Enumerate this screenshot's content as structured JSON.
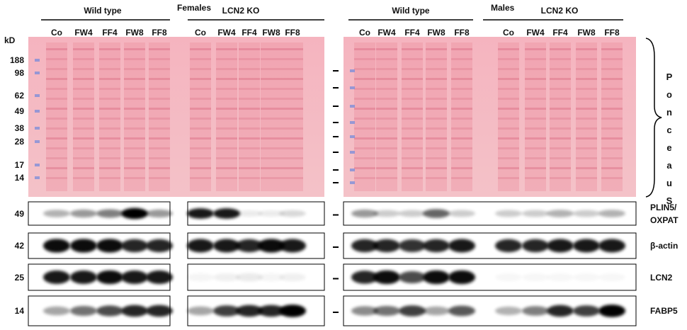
{
  "kd_label": "kD",
  "markers": [
    "188",
    "98",
    "62",
    "49",
    "38",
    "28",
    "17",
    "14"
  ],
  "ponceau": "PonceauS",
  "panels": [
    {
      "sex": "Females",
      "groups": [
        {
          "name": "Wild type",
          "lanes": [
            "Co",
            "FW4",
            "FF4",
            "FW8",
            "FF8"
          ]
        },
        {
          "name": "LCN2 KO",
          "lanes": [
            "Co",
            "FW4",
            "FF4",
            "FW8",
            "FF8"
          ]
        }
      ]
    },
    {
      "sex": "Males",
      "groups": [
        {
          "name": "Wild type",
          "lanes": [
            "Co",
            "FW4",
            "FF4",
            "FW8",
            "FF8"
          ]
        },
        {
          "name": "LCN2 KO",
          "lanes": [
            "Co",
            "FW4",
            "FF4",
            "FW8",
            "FF8"
          ]
        }
      ]
    }
  ],
  "blots": [
    {
      "kd": "49",
      "label": "PLIN5/ OXPAT"
    },
    {
      "kd": "42",
      "label": "β-actin"
    },
    {
      "kd": "25",
      "label": "LCN2"
    },
    {
      "kd": "14",
      "label": "FABP5"
    }
  ]
}
